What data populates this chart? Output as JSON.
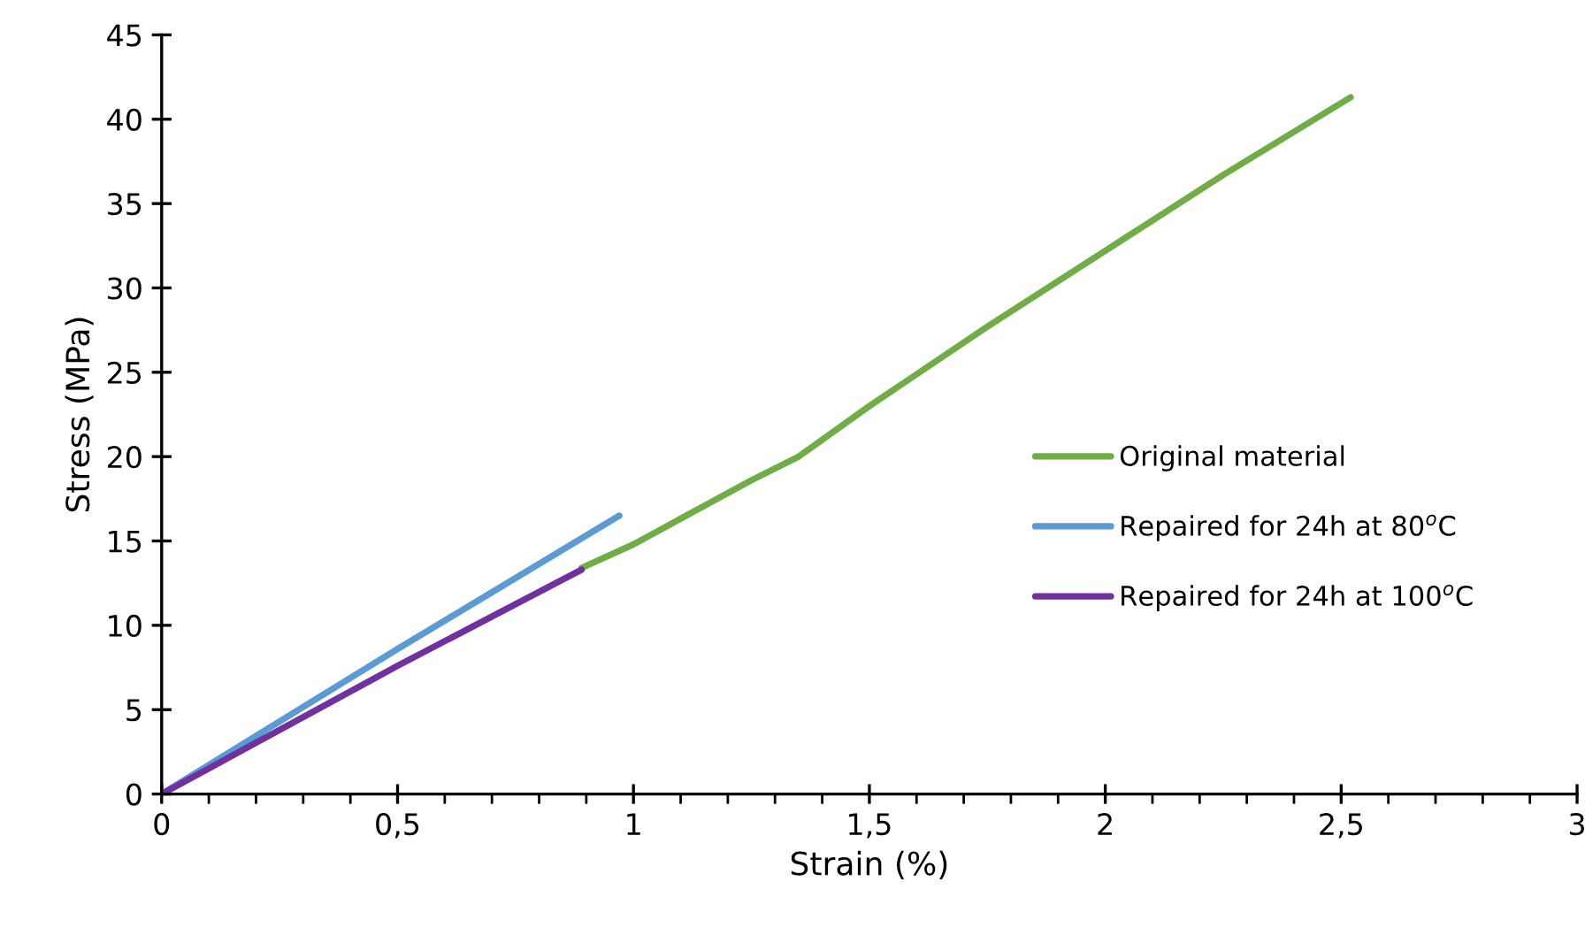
{
  "chart_data": {
    "type": "line",
    "xlabel": "Strain (%)",
    "ylabel": "Stress (MPa)",
    "series": [
      {
        "name": "Original material",
        "color": "#70ad47",
        "x": [
          0.89,
          1.0,
          1.25,
          1.35,
          1.5,
          1.75,
          2.0,
          2.25,
          2.52
        ],
        "values": [
          13.4,
          14.8,
          18.6,
          20.0,
          23.0,
          27.7,
          32.2,
          36.7,
          41.3
        ]
      },
      {
        "name": "Repaired for 24h at 80$^{o}$C",
        "color": "#5b9bd5",
        "x": [
          0,
          0.5,
          0.97
        ],
        "values": [
          0,
          8.6,
          16.5
        ]
      },
      {
        "name": "Repaired for 24h at 100$^{o}$C",
        "color": "#7030a0",
        "x": [
          0,
          0.5,
          0.89
        ],
        "values": [
          0,
          7.6,
          13.3
        ]
      }
    ],
    "xlim": [
      0,
      3
    ],
    "xticks": [
      0,
      {
        "value": 0.1,
        "label": null
      },
      {
        "value": 0.2,
        "label": null
      },
      {
        "value": 0.3,
        "label": null
      },
      {
        "value": 0.4,
        "label": null
      },
      {
        "value": 0.5,
        "label": "0,5"
      },
      {
        "value": 0.6,
        "label": null
      },
      {
        "value": 0.7,
        "label": null
      },
      {
        "value": 0.8,
        "label": null
      },
      {
        "value": 0.9,
        "label": null
      },
      1,
      {
        "value": 1.1,
        "label": null
      },
      {
        "value": 1.2,
        "label": null
      },
      {
        "value": 1.3,
        "label": null
      },
      {
        "value": 1.4,
        "label": null
      },
      {
        "value": 1.5,
        "label": "1,5"
      },
      {
        "value": 1.6,
        "label": null
      },
      {
        "value": 1.7,
        "label": null
      },
      {
        "value": 1.8,
        "label": null
      },
      {
        "value": 1.9,
        "label": null
      },
      2,
      {
        "value": 2.1,
        "label": null
      },
      {
        "value": 2.2,
        "label": null
      },
      {
        "value": 2.3,
        "label": null
      },
      {
        "value": 2.4,
        "label": null
      },
      {
        "value": 2.5,
        "label": "2,5"
      },
      {
        "value": 2.6,
        "label": null
      },
      {
        "value": 2.7,
        "label": null
      },
      {
        "value": 2.8,
        "label": null
      },
      {
        "value": 2.9,
        "label": null
      },
      3
    ],
    "ylim": [
      0,
      45
    ],
    "yticks": [
      0,
      5,
      10,
      15,
      20,
      25,
      30,
      35,
      40,
      45
    ],
    "grid": false,
    "legend": "right",
    "marker": "none",
    "line_style": "solid"
  }
}
